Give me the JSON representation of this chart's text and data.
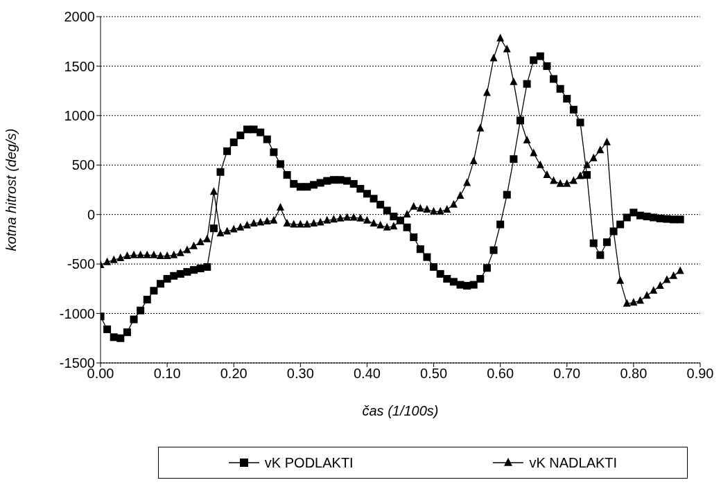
{
  "chart_data": {
    "type": "line",
    "xlabel": "čas (1/100s)",
    "ylabel": "kotna hitrost (deg/s)",
    "x": [
      0.0,
      0.01,
      0.02,
      0.03,
      0.04,
      0.05,
      0.06,
      0.07,
      0.08,
      0.09,
      0.1,
      0.11,
      0.12,
      0.13,
      0.14,
      0.15,
      0.16,
      0.17,
      0.18,
      0.19,
      0.2,
      0.21,
      0.22,
      0.23,
      0.24,
      0.25,
      0.26,
      0.27,
      0.28,
      0.29,
      0.3,
      0.31,
      0.32,
      0.33,
      0.34,
      0.35,
      0.36,
      0.37,
      0.38,
      0.39,
      0.4,
      0.41,
      0.42,
      0.43,
      0.44,
      0.45,
      0.46,
      0.47,
      0.48,
      0.49,
      0.5,
      0.51,
      0.52,
      0.53,
      0.54,
      0.55,
      0.56,
      0.57,
      0.58,
      0.59,
      0.6,
      0.61,
      0.62,
      0.63,
      0.64,
      0.65,
      0.66,
      0.67,
      0.68,
      0.69,
      0.7,
      0.71,
      0.72,
      0.73,
      0.74,
      0.75,
      0.76,
      0.77,
      0.78,
      0.79,
      0.8,
      0.81,
      0.82,
      0.83,
      0.84,
      0.85,
      0.86,
      0.87
    ],
    "series": [
      {
        "name": "vK PODLAKTI",
        "color": "#000000",
        "marker": "square",
        "values": [
          -1030,
          -1160,
          -1240,
          -1250,
          -1190,
          -1060,
          -970,
          -860,
          -770,
          -700,
          -650,
          -620,
          -600,
          -580,
          -560,
          -545,
          -530,
          -140,
          430,
          640,
          730,
          800,
          860,
          860,
          830,
          760,
          630,
          510,
          400,
          310,
          280,
          280,
          300,
          320,
          340,
          350,
          350,
          340,
          310,
          260,
          210,
          160,
          100,
          40,
          -20,
          -60,
          -130,
          -230,
          -350,
          -430,
          -530,
          -600,
          -650,
          -680,
          -710,
          -720,
          -710,
          -650,
          -540,
          -360,
          -100,
          200,
          560,
          950,
          1320,
          1560,
          1600,
          1500,
          1370,
          1270,
          1170,
          1060,
          930,
          400,
          -290,
          -410,
          -280,
          -170,
          -100,
          -30,
          20,
          -10,
          -20,
          -30,
          -40,
          -45,
          -50,
          -50
        ]
      },
      {
        "name": "vK NADLAKTI",
        "color": "#000000",
        "marker": "triangle",
        "values": [
          -510,
          -480,
          -460,
          -440,
          -420,
          -410,
          -410,
          -410,
          -410,
          -420,
          -420,
          -410,
          -390,
          -360,
          -320,
          -280,
          -250,
          230,
          -190,
          -170,
          -150,
          -130,
          -110,
          -90,
          -80,
          -70,
          -60,
          70,
          -90,
          -100,
          -100,
          -100,
          -90,
          -80,
          -60,
          -50,
          -40,
          -30,
          -30,
          -40,
          -60,
          -90,
          -110,
          -130,
          -120,
          -60,
          0,
          80,
          60,
          50,
          30,
          30,
          50,
          100,
          190,
          320,
          540,
          870,
          1230,
          1580,
          1780,
          1670,
          1340,
          960,
          750,
          620,
          500,
          400,
          340,
          310,
          310,
          340,
          390,
          500,
          570,
          650,
          730,
          -170,
          -670,
          -900,
          -890,
          -870,
          -820,
          -770,
          -720,
          -660,
          -620,
          -570
        ]
      }
    ],
    "xlim": [
      0,
      0.9
    ],
    "xticks": [
      {
        "value": 0,
        "label": "0.00"
      },
      {
        "value": 0.1,
        "label": "0.10"
      },
      {
        "value": 0.2,
        "label": "0.20"
      },
      {
        "value": 0.3,
        "label": "0.30"
      },
      {
        "value": 0.4,
        "label": "0.40"
      },
      {
        "value": 0.5,
        "label": "0.50"
      },
      {
        "value": 0.6,
        "label": "0.60"
      },
      {
        "value": 0.7,
        "label": "0.70"
      },
      {
        "value": 0.8,
        "label": "0.80"
      },
      {
        "value": 0.9,
        "label": "0.90"
      }
    ],
    "ylim": [
      -1500,
      2000
    ],
    "yticks": [
      -1500,
      -1000,
      -500,
      0,
      500,
      1000,
      1500,
      2000
    ],
    "grid": "y",
    "legend": "bottom",
    "line_style": "solid"
  }
}
